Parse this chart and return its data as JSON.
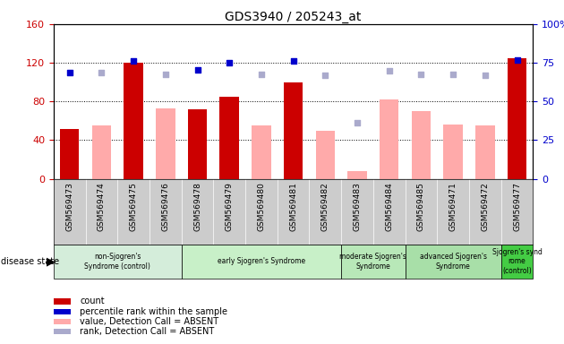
{
  "title": "GDS3940 / 205243_at",
  "samples": [
    "GSM569473",
    "GSM569474",
    "GSM569475",
    "GSM569476",
    "GSM569478",
    "GSM569479",
    "GSM569480",
    "GSM569481",
    "GSM569482",
    "GSM569483",
    "GSM569484",
    "GSM569485",
    "GSM569471",
    "GSM569472",
    "GSM569477"
  ],
  "count_values": [
    52,
    null,
    120,
    null,
    72,
    85,
    null,
    100,
    null,
    null,
    null,
    null,
    null,
    null,
    125
  ],
  "count_absent": [
    null,
    55,
    null,
    73,
    null,
    null,
    55,
    null,
    50,
    8,
    82,
    70,
    56,
    55,
    null
  ],
  "rank_values": [
    110,
    null,
    122,
    null,
    113,
    120,
    null,
    122,
    null,
    null,
    null,
    null,
    null,
    null,
    123
  ],
  "rank_absent": [
    null,
    110,
    null,
    108,
    null,
    null,
    108,
    null,
    107,
    58,
    112,
    108,
    108,
    107,
    null
  ],
  "disease_groups": [
    {
      "label": "non-Sjogren's\nSyndrome (control)",
      "start": 0,
      "end": 4,
      "color": "#d4edda"
    },
    {
      "label": "early Sjogren's Syndrome",
      "start": 4,
      "end": 9,
      "color": "#c8f0c8"
    },
    {
      "label": "moderate Sjogren's\nSyndrome",
      "start": 9,
      "end": 11,
      "color": "#b8e8b8"
    },
    {
      "label": "advanced Sjogren's\nSyndrome",
      "start": 11,
      "end": 14,
      "color": "#a8dfa8"
    },
    {
      "label": "Sjogren's synd\nrome\n(control)",
      "start": 14,
      "end": 15,
      "color": "#44cc44"
    }
  ],
  "ylim_left": [
    0,
    160
  ],
  "ylim_right": [
    0,
    100
  ],
  "yticks_left": [
    0,
    40,
    80,
    120,
    160
  ],
  "yticks_right": [
    0,
    25,
    50,
    75,
    100
  ],
  "count_color": "#cc0000",
  "count_absent_color": "#ffaaaa",
  "rank_color": "#0000cc",
  "rank_absent_color": "#aaaacc",
  "tick_bg_color": "#cccccc",
  "plot_bg_color": "#ffffff",
  "legend_items": [
    {
      "color": "#cc0000",
      "label": "count"
    },
    {
      "color": "#0000cc",
      "label": "percentile rank within the sample"
    },
    {
      "color": "#ffaaaa",
      "label": "value, Detection Call = ABSENT"
    },
    {
      "color": "#aaaacc",
      "label": "rank, Detection Call = ABSENT"
    }
  ]
}
